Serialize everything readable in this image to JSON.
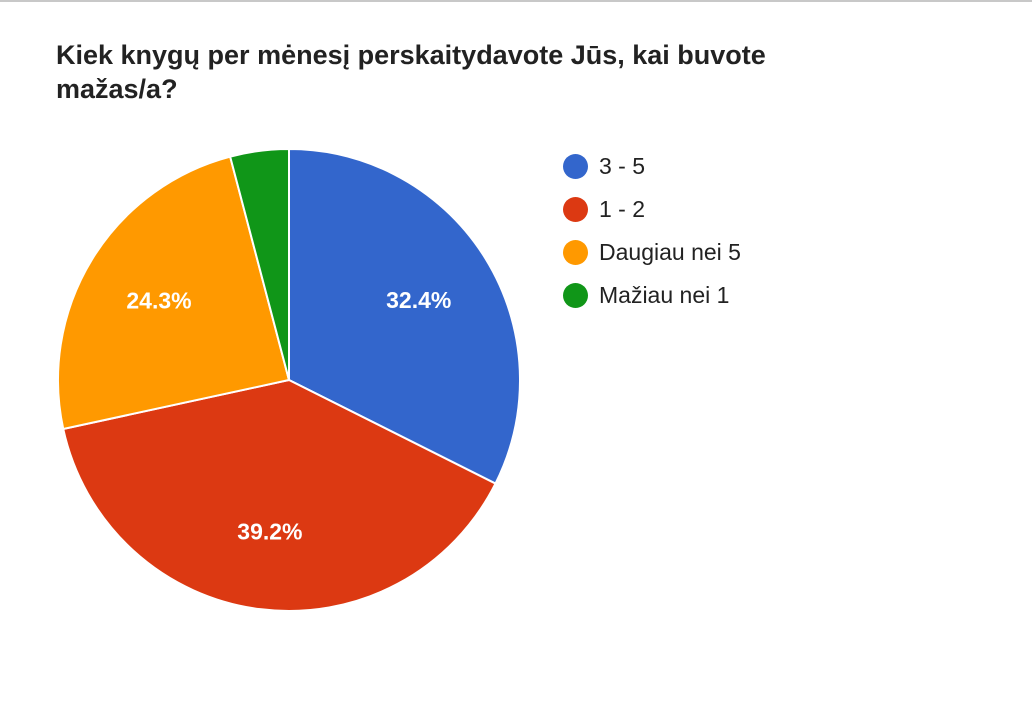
{
  "chart_data": {
    "type": "pie",
    "title": "Kiek knygų per mėnesį perskaitydavote Jūs, kai buvote mažas/a?",
    "categories": [
      "3 - 5",
      "1 - 2",
      "Daugiau nei 5",
      "Mažiau nei 1"
    ],
    "values": [
      32.4,
      39.2,
      24.3,
      4.1
    ],
    "data_labels": [
      "32.4%",
      "39.2%",
      "24.3%",
      ""
    ],
    "colors": [
      "#3366cc",
      "#dc3912",
      "#ff9900",
      "#109618"
    ],
    "legend_position": "right"
  }
}
